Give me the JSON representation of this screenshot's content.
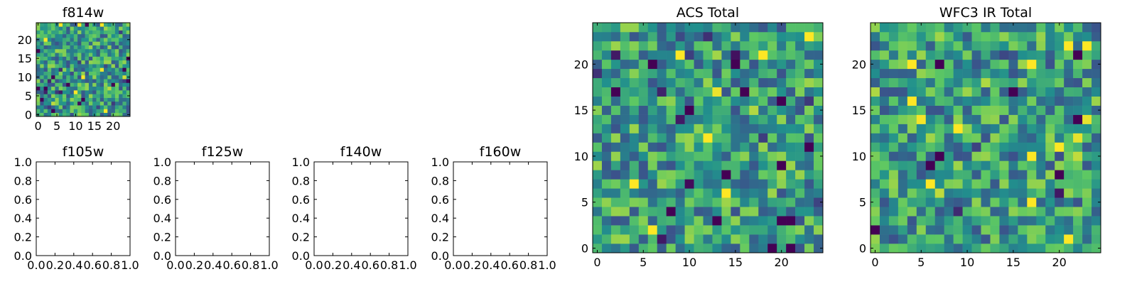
{
  "colormap": [
    "#440154",
    "#3b528b",
    "#21908d",
    "#5dc863",
    "#fde725"
  ],
  "chart_data": [
    {
      "type": "heatmap",
      "title": "f814w",
      "grid": false,
      "size": 25,
      "xticks": [
        "0",
        "5",
        "10",
        "15",
        "20"
      ],
      "yticks": [
        "0",
        "5",
        "10",
        "15",
        "20"
      ],
      "seed": 814,
      "vmin": 0,
      "vmax": 1
    },
    {
      "type": "empty",
      "title": "f105w",
      "xlim": [
        0,
        1
      ],
      "ylim": [
        0,
        1
      ],
      "xticks": [
        "0.0",
        "0.2",
        "0.4",
        "0.6",
        "0.8",
        "1.0"
      ],
      "yticks": [
        "0.0",
        "0.2",
        "0.4",
        "0.6",
        "0.8",
        "1.0"
      ]
    },
    {
      "type": "empty",
      "title": "f125w",
      "xlim": [
        0,
        1
      ],
      "ylim": [
        0,
        1
      ],
      "xticks": [
        "0.0",
        "0.2",
        "0.4",
        "0.6",
        "0.8",
        "1.0"
      ],
      "yticks": [
        "0.0",
        "0.2",
        "0.4",
        "0.6",
        "0.8",
        "1.0"
      ]
    },
    {
      "type": "empty",
      "title": "f140w",
      "xlim": [
        0,
        1
      ],
      "ylim": [
        0,
        1
      ],
      "xticks": [
        "0.0",
        "0.2",
        "0.4",
        "0.6",
        "0.8",
        "1.0"
      ],
      "yticks": [
        "0.0",
        "0.2",
        "0.4",
        "0.6",
        "0.8",
        "1.0"
      ]
    },
    {
      "type": "empty",
      "title": "f160w",
      "xlim": [
        0,
        1
      ],
      "ylim": [
        0,
        1
      ],
      "xticks": [
        "0.0",
        "0.2",
        "0.4",
        "0.6",
        "0.8",
        "1.0"
      ],
      "yticks": [
        "0.0",
        "0.2",
        "0.4",
        "0.6",
        "0.8",
        "1.0"
      ]
    },
    {
      "type": "heatmap",
      "title": "ACS Total",
      "grid": false,
      "size": 25,
      "xticks": [
        "0",
        "5",
        "10",
        "15",
        "20"
      ],
      "yticks": [
        "0",
        "5",
        "10",
        "15",
        "20"
      ],
      "seed": 1234,
      "vmin": 0,
      "vmax": 1
    },
    {
      "type": "heatmap",
      "title": "WFC3 IR Total",
      "grid": false,
      "size": 25,
      "xticks": [
        "0",
        "5",
        "10",
        "15",
        "20"
      ],
      "yticks": [
        "0",
        "5",
        "10",
        "15",
        "20"
      ],
      "seed": 4321,
      "vmin": 0,
      "vmax": 1
    }
  ]
}
